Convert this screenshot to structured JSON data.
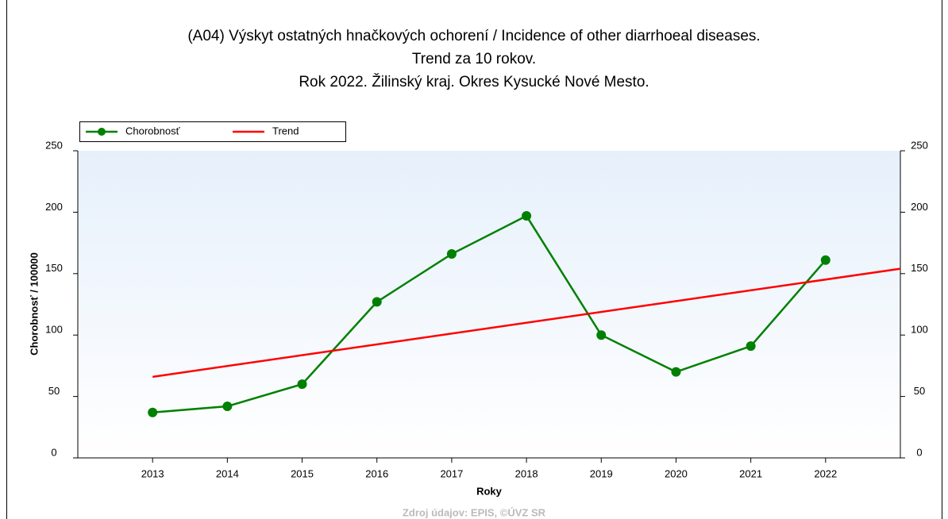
{
  "chart_data": {
    "type": "line",
    "title": [
      "(A04) Výskyt ostatných hnačkových ochorení / Incidence of other diarrhoeal diseases.",
      "Trend za 10 rokov.",
      "Rok 2022. Žilinský kraj. Okres Kysucké Nové Mesto."
    ],
    "xlabel": "Roky",
    "ylabel": "Chorobnosť / 100000",
    "source": "Zdroj údajov: EPIS, ©ÚVZ SR",
    "xlim": [
      2012,
      2023
    ],
    "xticks": [
      2013,
      2014,
      2015,
      2016,
      2017,
      2018,
      2019,
      2020,
      2021,
      2022
    ],
    "ylim": [
      0,
      250
    ],
    "yticks": [
      0,
      50,
      100,
      150,
      200,
      250
    ],
    "series": [
      {
        "name": "Chorobnosť",
        "color": "#008000",
        "marker": "circle",
        "x": [
          2013,
          2014,
          2015,
          2016,
          2017,
          2018,
          2019,
          2020,
          2021,
          2022
        ],
        "values": [
          37,
          42,
          60,
          127,
          166,
          197,
          100,
          70,
          91,
          161
        ]
      },
      {
        "name": "Trend",
        "color": "#ff0000",
        "x": [
          2013,
          2023
        ],
        "values": [
          66,
          154
        ]
      }
    ]
  }
}
